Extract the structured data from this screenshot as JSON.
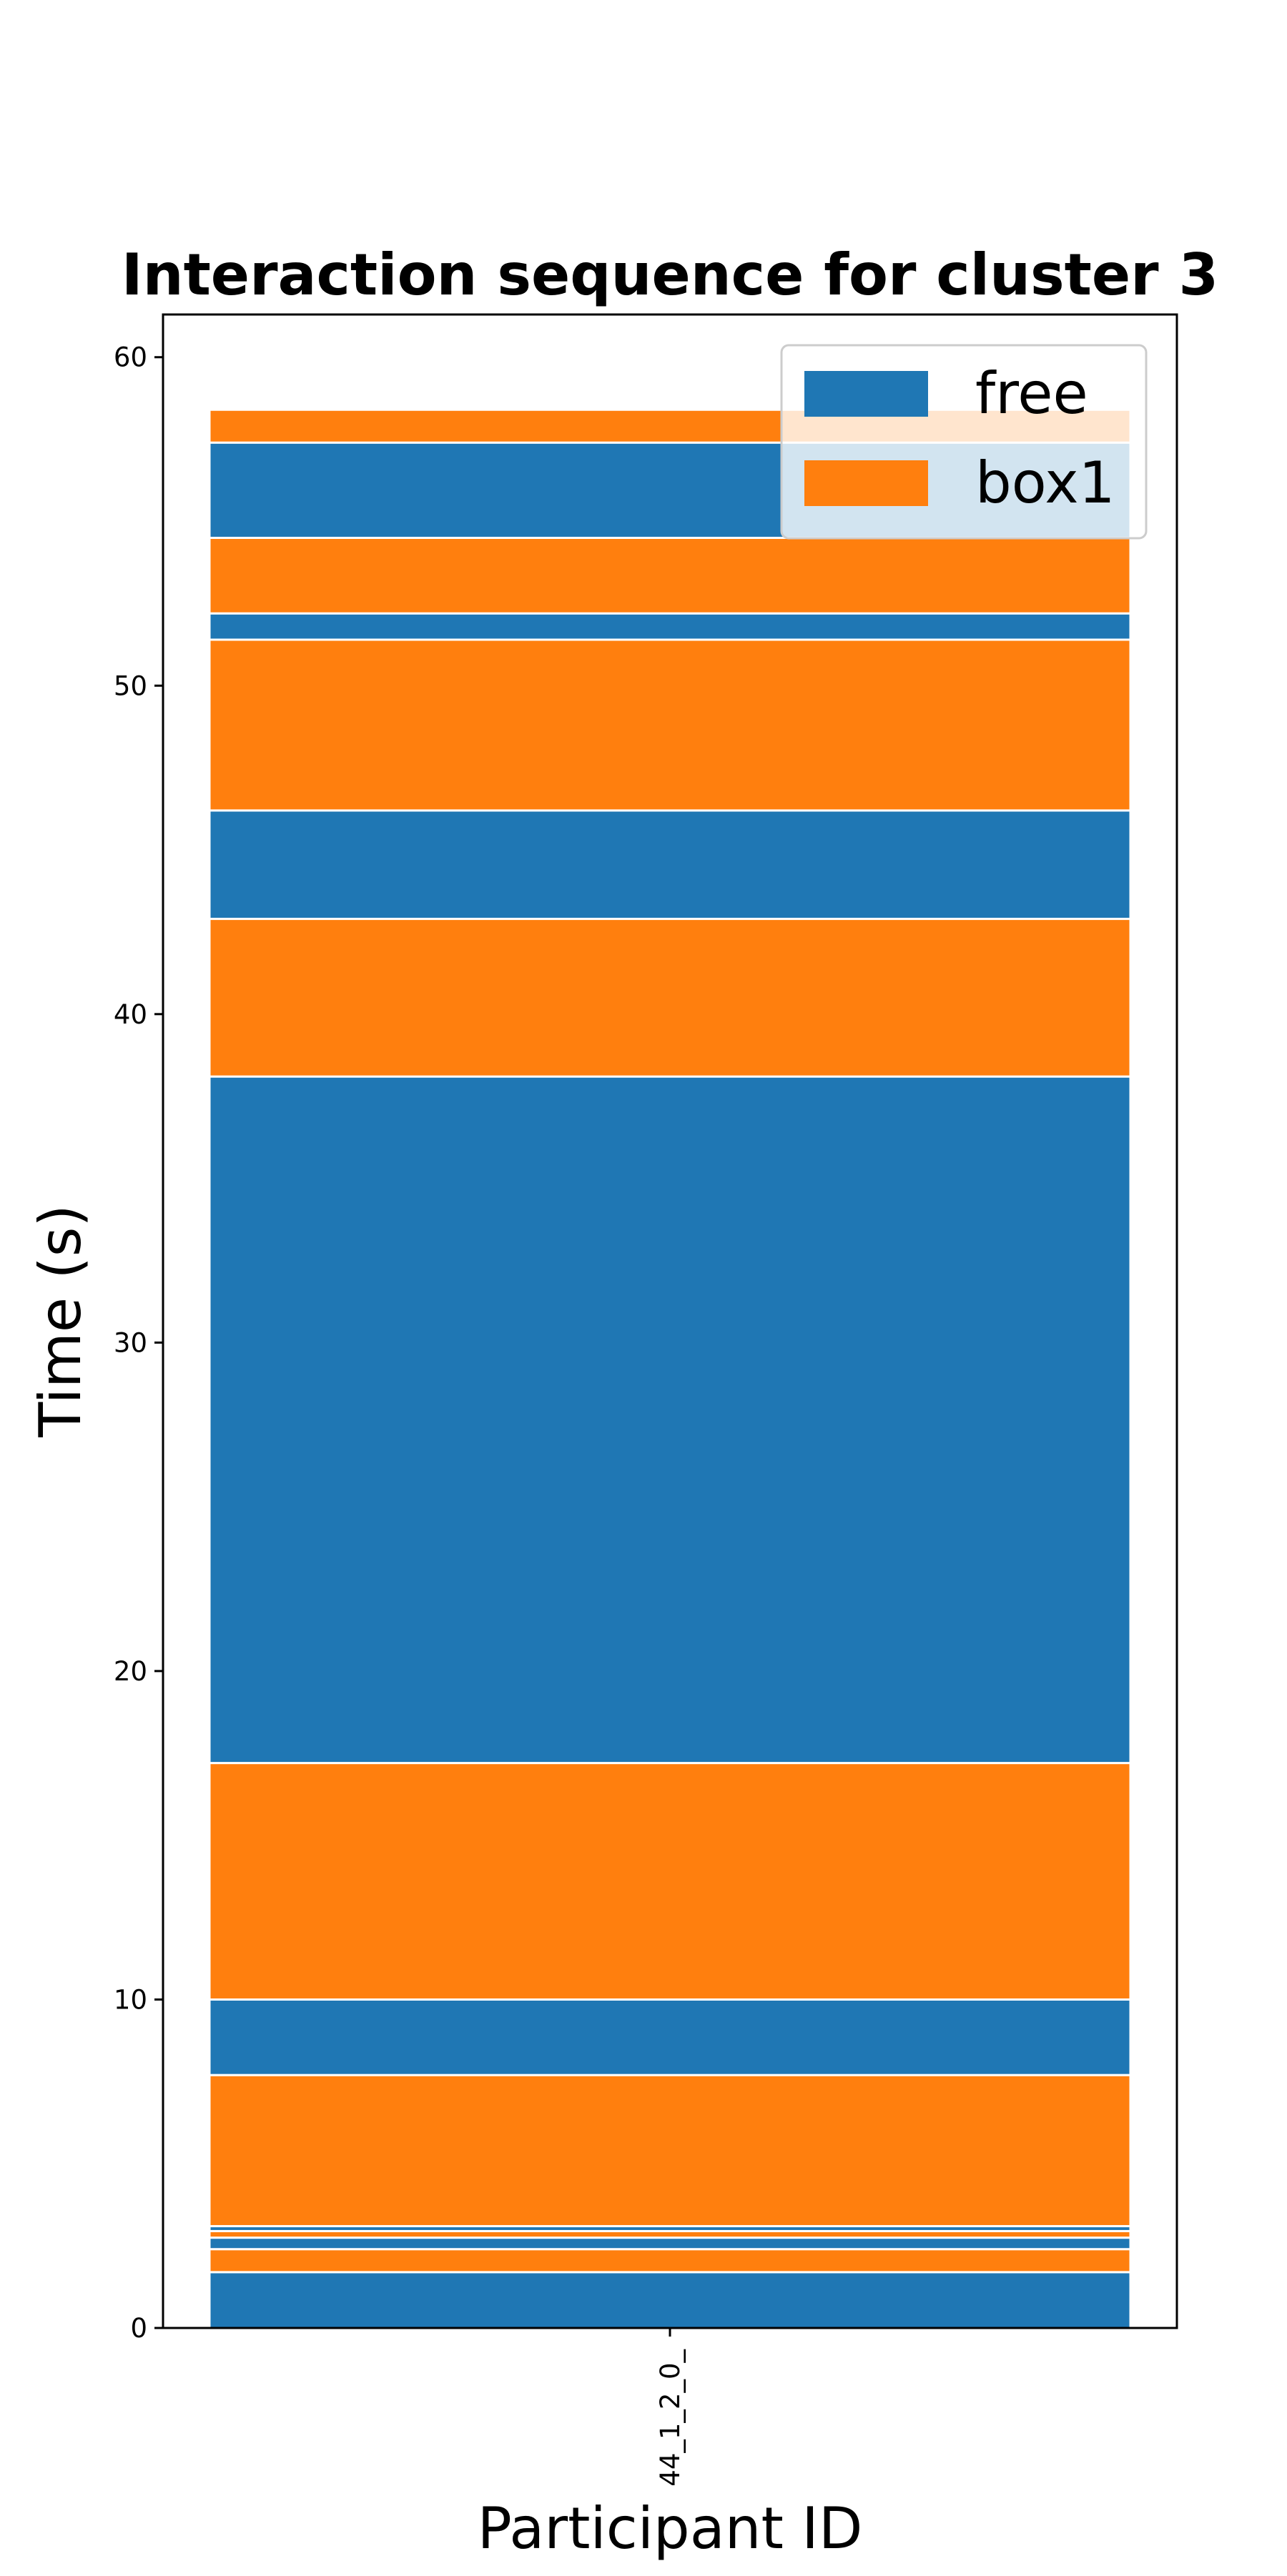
{
  "chart_data": {
    "type": "bar",
    "title": "Interaction sequence for cluster 3",
    "xlabel": "Participant ID",
    "ylabel": "Time (s)",
    "categories": [
      "44_1_2_0_"
    ],
    "ylim": [
      0,
      61.3
    ],
    "yticks": [
      "0",
      "10",
      "20",
      "30",
      "40",
      "50",
      "60"
    ],
    "grid": false,
    "legend": {
      "placement": "top-right",
      "entries": [
        {
          "name": "free",
          "color": "#1f77b4"
        },
        {
          "name": "box1",
          "color": "#ff7f0e"
        }
      ]
    },
    "colors": {
      "free": "#1f77b4",
      "box1": "#ff7f0e"
    },
    "segments": [
      {
        "state": "free",
        "start": 0.0,
        "end": 1.7
      },
      {
        "state": "box1",
        "start": 1.7,
        "end": 2.4
      },
      {
        "state": "free",
        "start": 2.4,
        "end": 2.75
      },
      {
        "state": "box1",
        "start": 2.75,
        "end": 2.95
      },
      {
        "state": "free",
        "start": 2.95,
        "end": 3.1
      },
      {
        "state": "box1",
        "start": 3.1,
        "end": 7.7
      },
      {
        "state": "free",
        "start": 7.7,
        "end": 10.0
      },
      {
        "state": "box1",
        "start": 10.0,
        "end": 17.2
      },
      {
        "state": "free",
        "start": 17.2,
        "end": 38.1
      },
      {
        "state": "box1",
        "start": 38.1,
        "end": 42.9
      },
      {
        "state": "free",
        "start": 42.9,
        "end": 46.2
      },
      {
        "state": "box1",
        "start": 46.2,
        "end": 51.4
      },
      {
        "state": "free",
        "start": 51.4,
        "end": 52.2
      },
      {
        "state": "box1",
        "start": 52.2,
        "end": 54.5
      },
      {
        "state": "free",
        "start": 54.5,
        "end": 57.4
      },
      {
        "state": "box1",
        "start": 57.4,
        "end": 58.4
      }
    ]
  }
}
